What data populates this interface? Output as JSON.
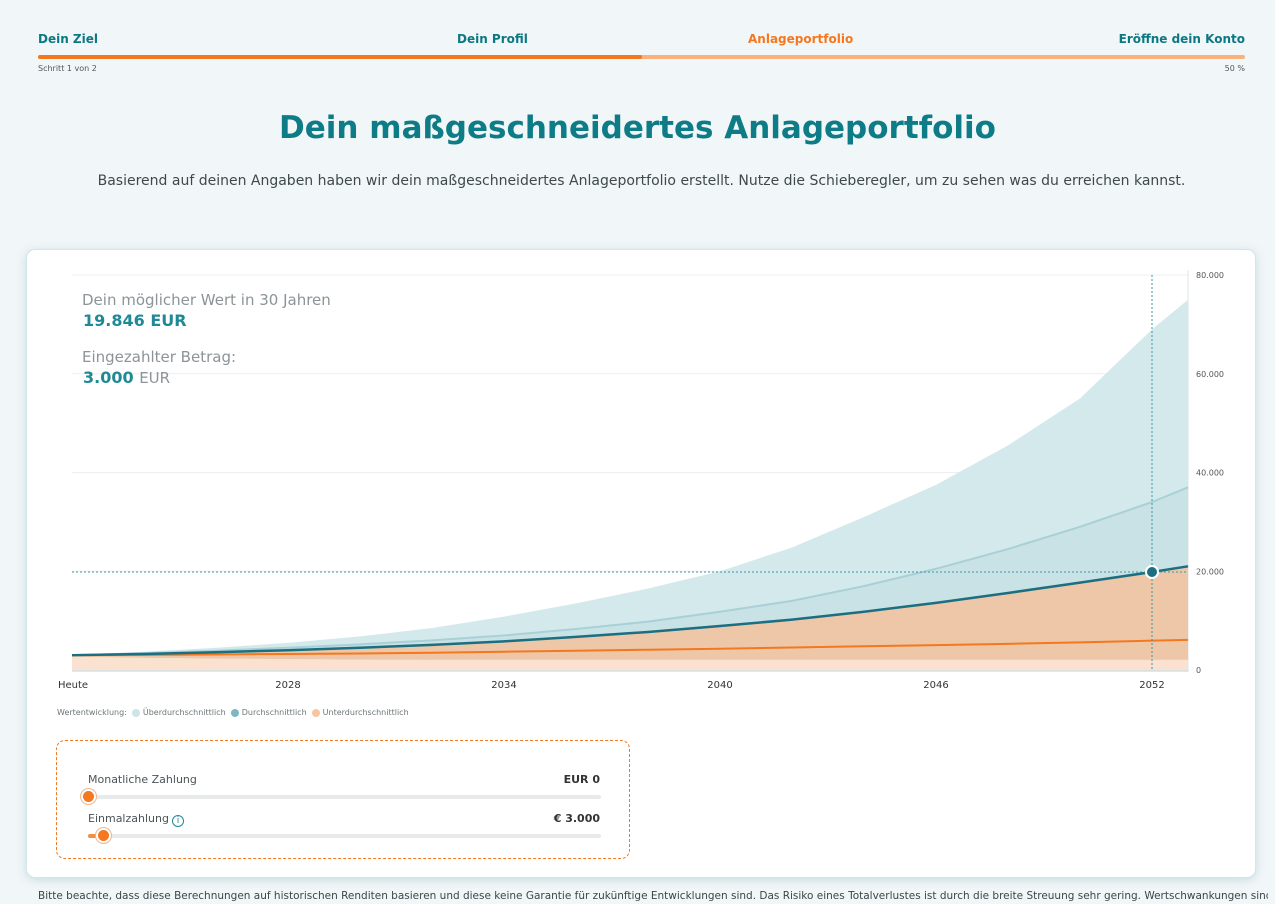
{
  "stepper": {
    "steps": [
      "Dein Ziel",
      "Dein Profil",
      "Anlageportfolio",
      "Eröffne dein Konto"
    ],
    "active_index": 2,
    "step_count_text": "Schritt 1 von 2",
    "percent_text": "50 %",
    "progress_fraction": 0.5
  },
  "header": {
    "title": "Dein maßgeschneidertes Anlageportfolio",
    "subtitle": "Basierend auf deinen Angaben haben wir dein maßgeschneidertes Anlageportfolio erstellt. Nutze die Schieberegler, um zu sehen was du erreichen kannst."
  },
  "summary": {
    "possible_value_label": "Dein möglicher Wert in 30 Jahren",
    "possible_value": "19.846 EUR",
    "paid_in_label": "Eingezahlter Betrag:",
    "paid_in_value": "3.000",
    "paid_in_currency": "EUR"
  },
  "chart_data": {
    "type": "area",
    "x_tick_labels": [
      "Heute",
      "2028",
      "2034",
      "2040",
      "2046",
      "2052"
    ],
    "x_tick_years": [
      2022,
      2028,
      2034,
      2040,
      2046,
      2052
    ],
    "y_tick_labels": [
      "80.000",
      "60.000",
      "40.000",
      "20.000",
      "0"
    ],
    "y_ticks": [
      80000,
      60000,
      40000,
      20000,
      0
    ],
    "ylim": [
      0,
      80000
    ],
    "xlim": [
      2022,
      2053
    ],
    "grid": true,
    "legend_title": "Wertentwicklung:",
    "legend_position": "bottom-left",
    "highlight": {
      "year": 2052,
      "value": 19846
    },
    "x": [
      2022,
      2024,
      2026,
      2028,
      2030,
      2032,
      2034,
      2036,
      2038,
      2040,
      2042,
      2044,
      2046,
      2048,
      2050,
      2052,
      2053
    ],
    "series": [
      {
        "name": "Überdurchschnittlich",
        "color": "#d4e9ec",
        "role": "band-upper",
        "values": [
          3000,
          3700,
          4500,
          5500,
          6800,
          8500,
          10800,
          13500,
          16500,
          20000,
          24800,
          31000,
          37500,
          45500,
          55000,
          69000,
          75000
        ]
      },
      {
        "name": "Durchschnittlich",
        "color": "#8fc4cc",
        "role": "band-upper",
        "values": [
          3000,
          3400,
          3900,
          4500,
          5200,
          6000,
          7000,
          8300,
          9800,
          11800,
          14000,
          17000,
          20500,
          24500,
          29000,
          34000,
          37000
        ]
      },
      {
        "name": "Durchschnittlich",
        "color": "#1b6f80",
        "role": "line",
        "values": [
          3000,
          3250,
          3600,
          4000,
          4500,
          5100,
          5800,
          6700,
          7700,
          8900,
          10200,
          11800,
          13600,
          15600,
          17700,
          19846,
          21000
        ]
      },
      {
        "name": "Unterdurchschnittlich",
        "color": "#f5781e",
        "role": "line",
        "values": [
          3000,
          3070,
          3150,
          3250,
          3350,
          3500,
          3700,
          3900,
          4100,
          4300,
          4550,
          4800,
          5050,
          5300,
          5600,
          5950,
          6100
        ]
      },
      {
        "name": "Unterdurchschnittlich",
        "color": "#fbe2d0",
        "role": "band-lower",
        "values": [
          2700,
          2450,
          2300,
          2200,
          2100,
          2050,
          2050,
          2050,
          2050,
          2050,
          2050,
          2050,
          2050,
          2050,
          2050,
          2050,
          2050
        ]
      }
    ]
  },
  "sliders": {
    "monthly": {
      "label": "Monatliche Zahlung",
      "value": "EUR 0",
      "fraction": 0.0
    },
    "oneoff": {
      "label": "Einmalzahlung",
      "value": "€ 3.000",
      "fraction": 0.03
    }
  },
  "disclaimer": "Bitte beachte, dass diese Berechnungen auf historischen Renditen basieren und diese keine Garantie für zukünftige Entwicklungen sind. Das Risiko eines Totalverlustes ist durch die breite Streuung sehr gering. Wertschwankungen sind aufgrund"
}
